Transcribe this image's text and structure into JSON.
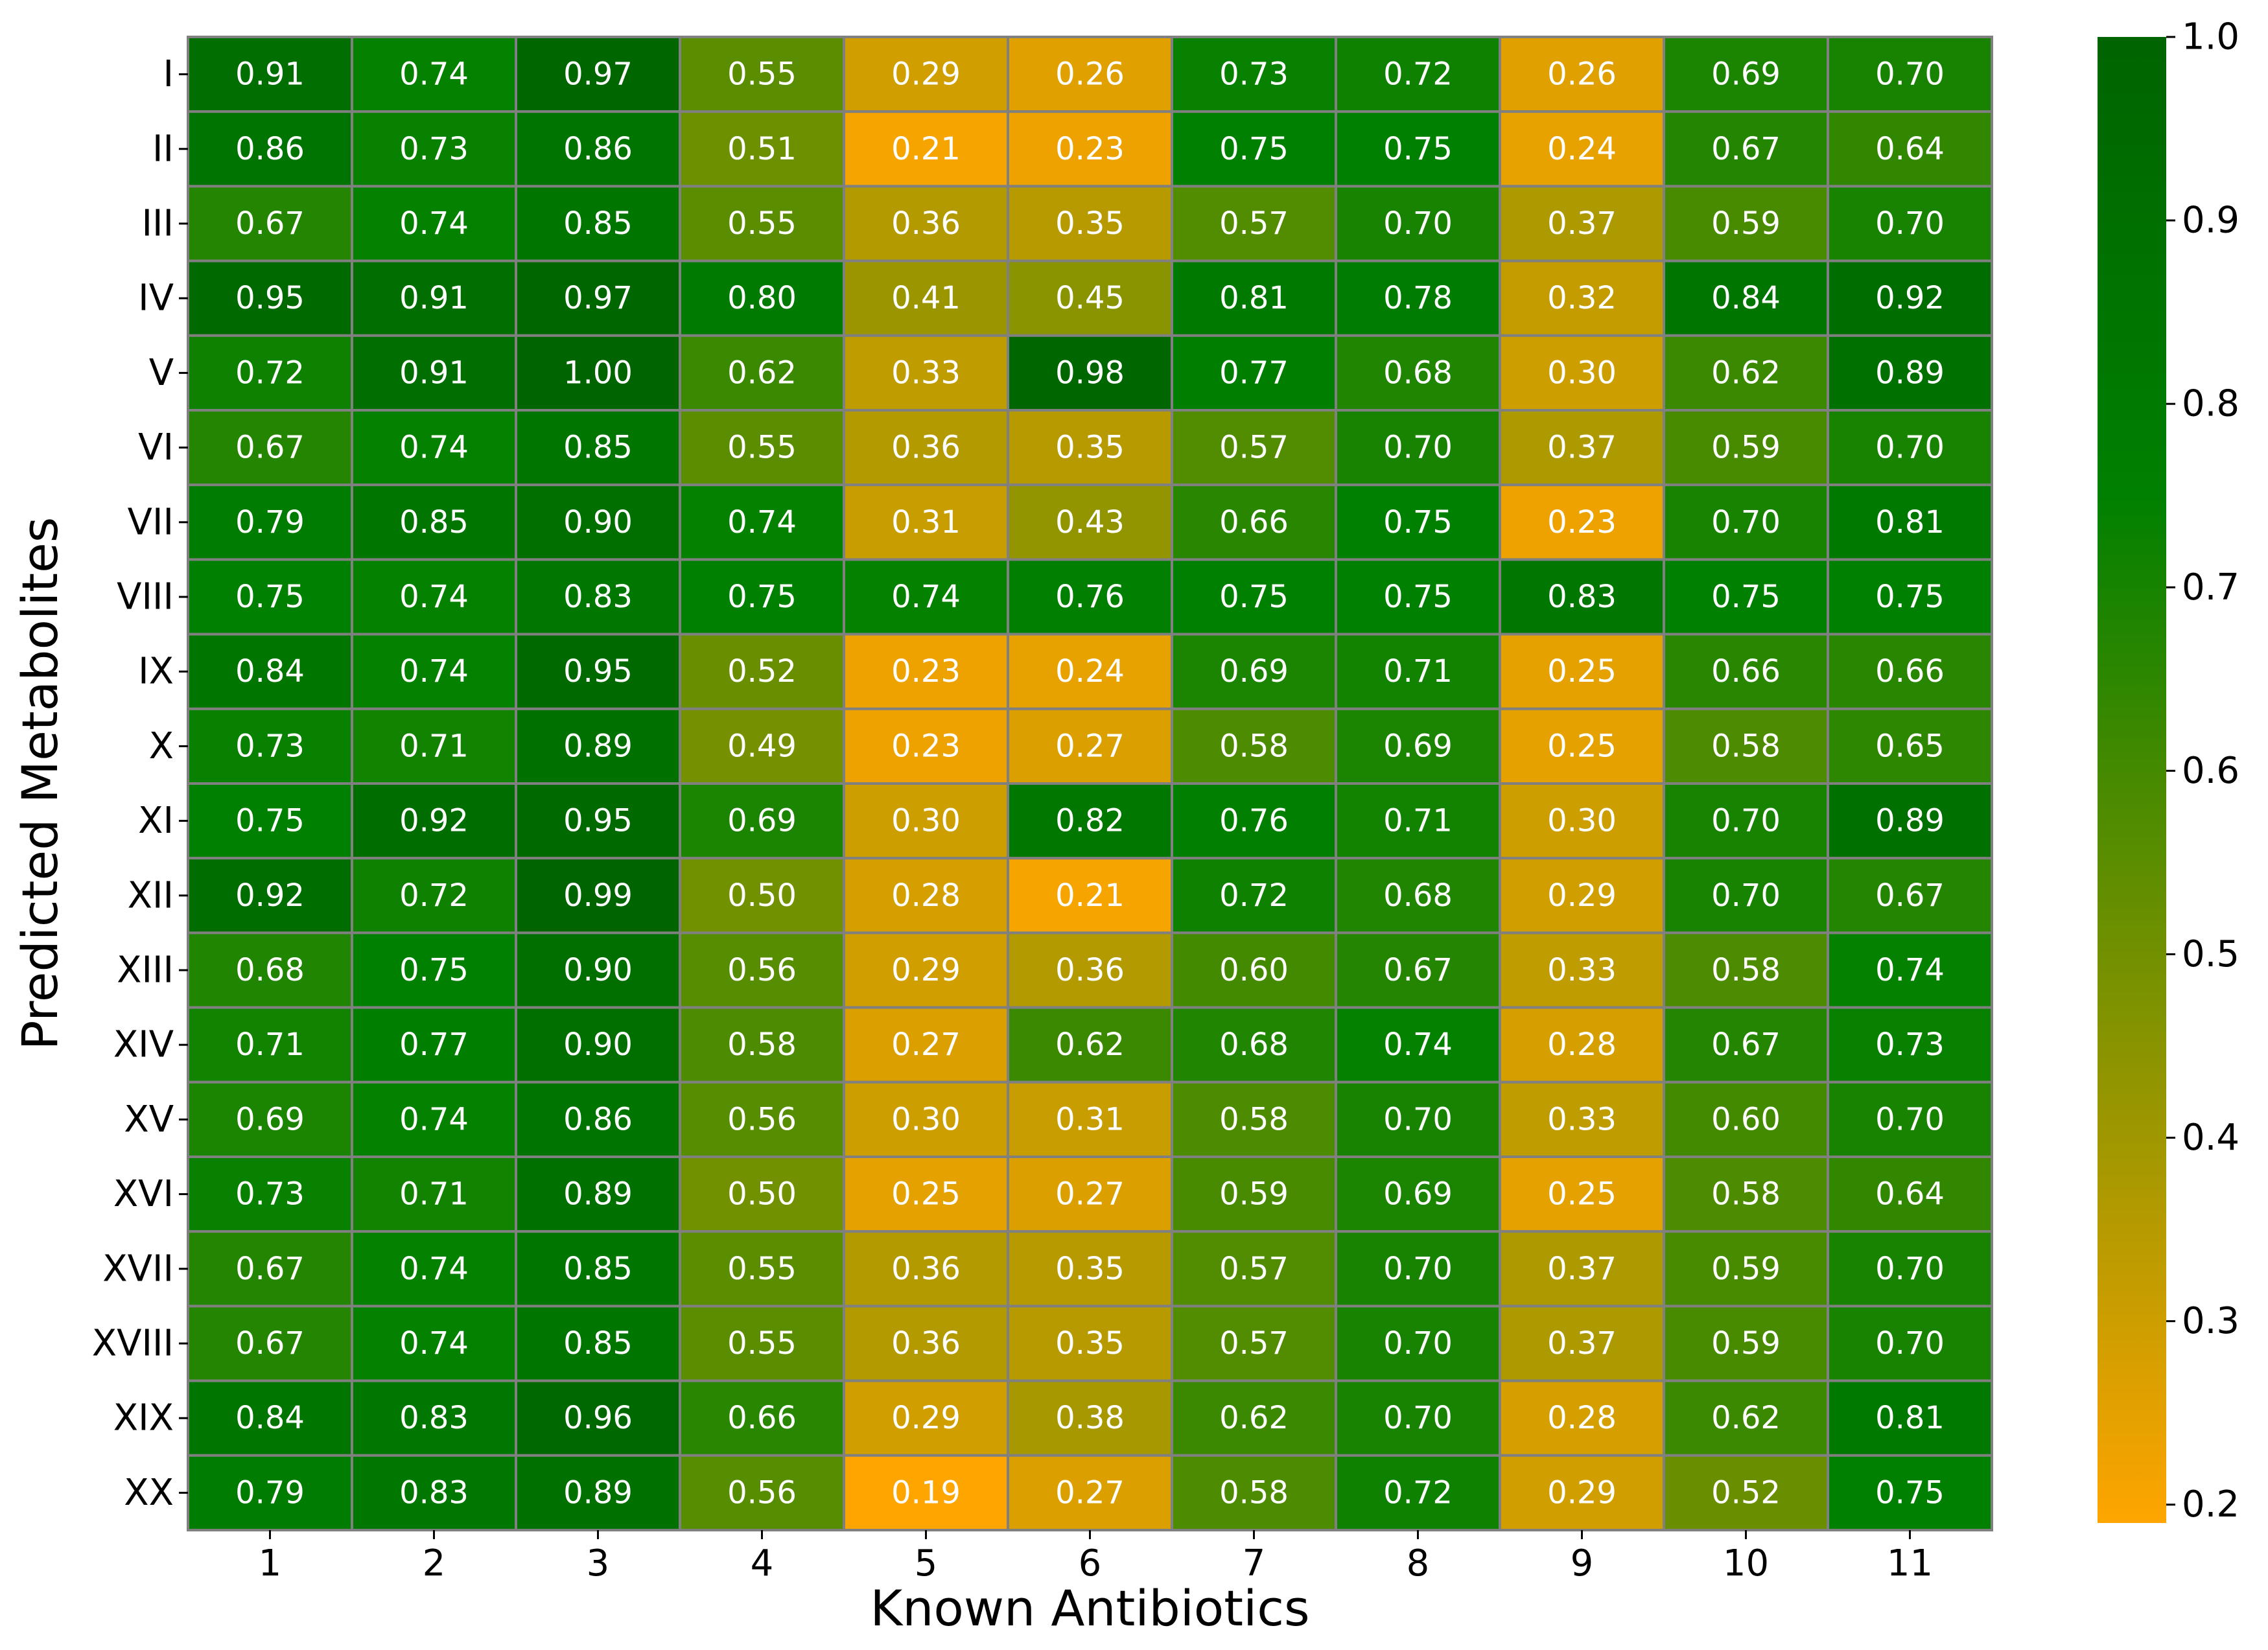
{
  "chart_data": {
    "type": "heatmap",
    "title": "",
    "xlabel": "Known Antibiotics",
    "ylabel": "Predicted Metabolites",
    "x_categories": [
      "1",
      "2",
      "3",
      "4",
      "5",
      "6",
      "7",
      "8",
      "9",
      "10",
      "11"
    ],
    "y_categories": [
      "I",
      "II",
      "III",
      "IV",
      "V",
      "VI",
      "VII",
      "VIII",
      "IX",
      "X",
      "XI",
      "XII",
      "XIII",
      "XIV",
      "XV",
      "XVI",
      "XVII",
      "XVIII",
      "XIX",
      "XX"
    ],
    "values": [
      [
        "0.91",
        "0.74",
        "0.97",
        "0.55",
        "0.29",
        "0.26",
        "0.73",
        "0.72",
        "0.26",
        "0.69",
        "0.70"
      ],
      [
        "0.86",
        "0.73",
        "0.86",
        "0.51",
        "0.21",
        "0.23",
        "0.75",
        "0.75",
        "0.24",
        "0.67",
        "0.64"
      ],
      [
        "0.67",
        "0.74",
        "0.85",
        "0.55",
        "0.36",
        "0.35",
        "0.57",
        "0.70",
        "0.37",
        "0.59",
        "0.70"
      ],
      [
        "0.95",
        "0.91",
        "0.97",
        "0.80",
        "0.41",
        "0.45",
        "0.81",
        "0.78",
        "0.32",
        "0.84",
        "0.92"
      ],
      [
        "0.72",
        "0.91",
        "1.00",
        "0.62",
        "0.33",
        "0.98",
        "0.77",
        "0.68",
        "0.30",
        "0.62",
        "0.89"
      ],
      [
        "0.67",
        "0.74",
        "0.85",
        "0.55",
        "0.36",
        "0.35",
        "0.57",
        "0.70",
        "0.37",
        "0.59",
        "0.70"
      ],
      [
        "0.79",
        "0.85",
        "0.90",
        "0.74",
        "0.31",
        "0.43",
        "0.66",
        "0.75",
        "0.23",
        "0.70",
        "0.81"
      ],
      [
        "0.75",
        "0.74",
        "0.83",
        "0.75",
        "0.74",
        "0.76",
        "0.75",
        "0.75",
        "0.83",
        "0.75",
        "0.75"
      ],
      [
        "0.84",
        "0.74",
        "0.95",
        "0.52",
        "0.23",
        "0.24",
        "0.69",
        "0.71",
        "0.25",
        "0.66",
        "0.66"
      ],
      [
        "0.73",
        "0.71",
        "0.89",
        "0.49",
        "0.23",
        "0.27",
        "0.58",
        "0.69",
        "0.25",
        "0.58",
        "0.65"
      ],
      [
        "0.75",
        "0.92",
        "0.95",
        "0.69",
        "0.30",
        "0.82",
        "0.76",
        "0.71",
        "0.30",
        "0.70",
        "0.89"
      ],
      [
        "0.92",
        "0.72",
        "0.99",
        "0.50",
        "0.28",
        "0.21",
        "0.72",
        "0.68",
        "0.29",
        "0.70",
        "0.67"
      ],
      [
        "0.68",
        "0.75",
        "0.90",
        "0.56",
        "0.29",
        "0.36",
        "0.60",
        "0.67",
        "0.33",
        "0.58",
        "0.74"
      ],
      [
        "0.71",
        "0.77",
        "0.90",
        "0.58",
        "0.27",
        "0.62",
        "0.68",
        "0.74",
        "0.28",
        "0.67",
        "0.73"
      ],
      [
        "0.69",
        "0.74",
        "0.86",
        "0.56",
        "0.30",
        "0.31",
        "0.58",
        "0.70",
        "0.33",
        "0.60",
        "0.70"
      ],
      [
        "0.73",
        "0.71",
        "0.89",
        "0.50",
        "0.25",
        "0.27",
        "0.59",
        "0.69",
        "0.25",
        "0.58",
        "0.64"
      ],
      [
        "0.67",
        "0.74",
        "0.85",
        "0.55",
        "0.36",
        "0.35",
        "0.57",
        "0.70",
        "0.37",
        "0.59",
        "0.70"
      ],
      [
        "0.67",
        "0.74",
        "0.85",
        "0.55",
        "0.36",
        "0.35",
        "0.57",
        "0.70",
        "0.37",
        "0.59",
        "0.70"
      ],
      [
        "0.84",
        "0.83",
        "0.96",
        "0.66",
        "0.29",
        "0.38",
        "0.62",
        "0.70",
        "0.28",
        "0.62",
        "0.81"
      ],
      [
        "0.79",
        "0.83",
        "0.89",
        "0.56",
        "0.19",
        "0.27",
        "0.58",
        "0.72",
        "0.29",
        "0.52",
        "0.75"
      ]
    ],
    "colorbar": {
      "vmin": 0.19,
      "vmax": 1.0,
      "ticks": [
        "0.2",
        "0.3",
        "0.4",
        "0.5",
        "0.6",
        "0.7",
        "0.8",
        "0.9",
        "1.0"
      ],
      "color_stops": [
        {
          "value": 0.19,
          "color": "#ffa500"
        },
        {
          "value": 0.75,
          "color": "#008000"
        },
        {
          "value": 1.0,
          "color": "#006400"
        }
      ]
    },
    "cell_border_color": "#808080",
    "cell_text_color": "#ffffff",
    "colorbar_location": "right",
    "grid": false
  }
}
